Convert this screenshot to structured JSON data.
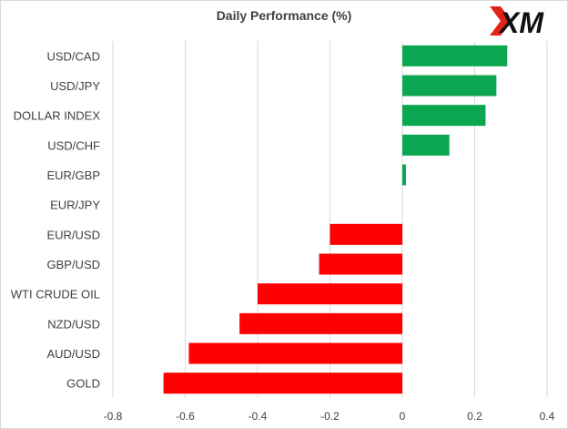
{
  "brand": {
    "logo_text": "XM",
    "logo_color": "#111111",
    "logo_accent": "#e2231a"
  },
  "colors": {
    "positive": "#0aa750",
    "negative": "#ff0000",
    "grid": "#d9d9d9"
  },
  "chart_data": {
    "type": "bar",
    "orientation": "horizontal",
    "title": "Daily Performance  (%)",
    "xlabel": "",
    "ylabel": "",
    "xlim": [
      -0.8,
      0.4
    ],
    "ticks": [
      "-0.8",
      "-0.6",
      "-0.4",
      "-0.2",
      "0",
      "0.2",
      "0.4"
    ],
    "grid": true,
    "legend": "none",
    "categories": [
      "USD/CAD",
      "USD/JPY",
      "DOLLAR INDEX",
      "USD/CHF",
      "EUR/GBP",
      "EUR/JPY",
      "EUR/USD",
      "GBP/USD",
      "WTI CRUDE OIL",
      "NZD/USD",
      "AUD/USD",
      "GOLD"
    ],
    "values": [
      0.29,
      0.26,
      0.23,
      0.13,
      0.01,
      0.0,
      -0.2,
      -0.23,
      -0.4,
      -0.45,
      -0.59,
      -0.66
    ]
  }
}
